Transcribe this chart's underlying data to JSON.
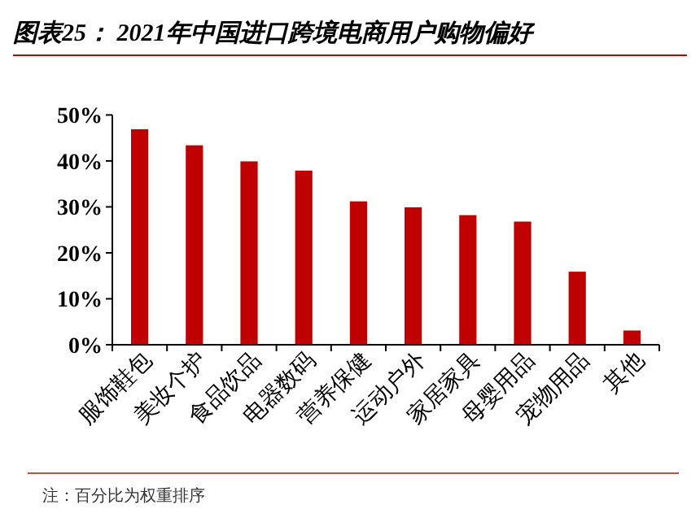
{
  "chart_data": {
    "type": "bar",
    "title": "图表25：  2021年中国进口跨境电商用户购物偏好",
    "categories": [
      "服饰鞋包",
      "美妆个护",
      "食品饮品",
      "电器数码",
      "营养保健",
      "运动户外",
      "家居家具",
      "母婴用品",
      "宠物用品",
      "其他"
    ],
    "values": [
      46.9,
      43.4,
      39.9,
      37.9,
      31.2,
      29.9,
      28.2,
      26.8,
      15.9,
      3.1
    ],
    "color": "#c00000",
    "ylim": [
      0,
      50
    ],
    "yticks": [
      {
        "value": 0,
        "label": "0%"
      },
      {
        "value": 10,
        "label": "10%"
      },
      {
        "value": 20,
        "label": "20%"
      },
      {
        "value": 30,
        "label": "30%"
      },
      {
        "value": 40,
        "label": "40%"
      },
      {
        "value": 50,
        "label": "50%"
      }
    ],
    "grid": false,
    "annotations": [
      "注：百分比为权重排序"
    ]
  }
}
